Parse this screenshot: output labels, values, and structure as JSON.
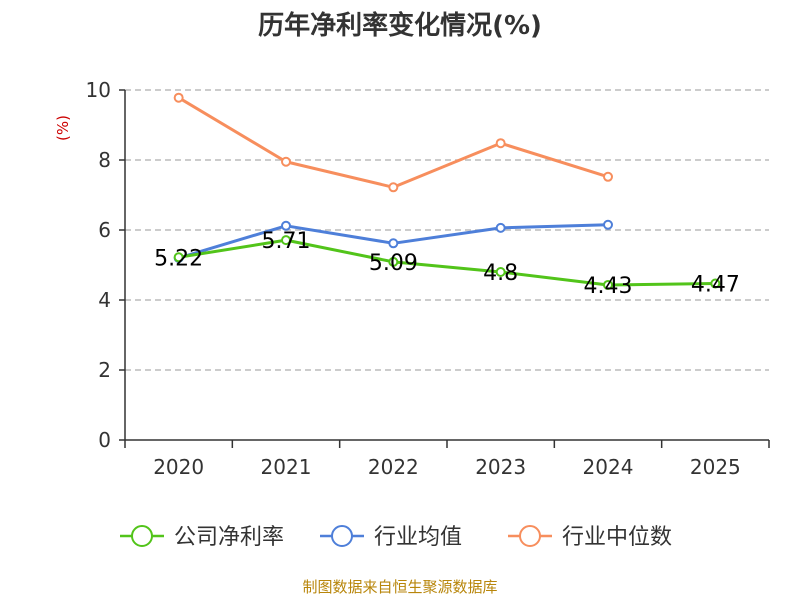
{
  "chart_data": {
    "type": "line",
    "title": "历年净利率变化情况(%)",
    "ylabel": "(%)",
    "xlabel": "",
    "categories": [
      "2020",
      "2021",
      "2022",
      "2023",
      "2024",
      "2025"
    ],
    "ylim": [
      0,
      10
    ],
    "yticks": [
      0,
      2,
      4,
      6,
      8,
      10
    ],
    "grid": "horizontal-dashed",
    "legend_position": "bottom",
    "series": [
      {
        "name": "公司净利率",
        "color": "#52c41a",
        "values": [
          5.22,
          5.71,
          5.09,
          4.8,
          4.43,
          4.47
        ],
        "labels": [
          "5.22",
          "5.71",
          "5.09",
          "4.8",
          "4.43",
          "4.47"
        ]
      },
      {
        "name": "行业均值",
        "color": "#4e7fd9",
        "values": [
          5.2,
          6.12,
          5.62,
          6.06,
          6.15,
          null
        ]
      },
      {
        "name": "行业中位数",
        "color": "#f78e5d",
        "values": [
          9.78,
          7.95,
          7.22,
          8.48,
          7.52,
          null
        ]
      }
    ]
  },
  "source": "制图数据来自恒生聚源数据库"
}
